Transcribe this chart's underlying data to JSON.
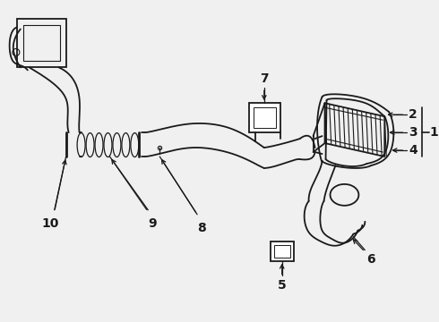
{
  "bg_color": "#f0f0f0",
  "line_color": "#1a1a1a",
  "fig_width": 4.9,
  "fig_height": 3.6,
  "dpi": 100
}
